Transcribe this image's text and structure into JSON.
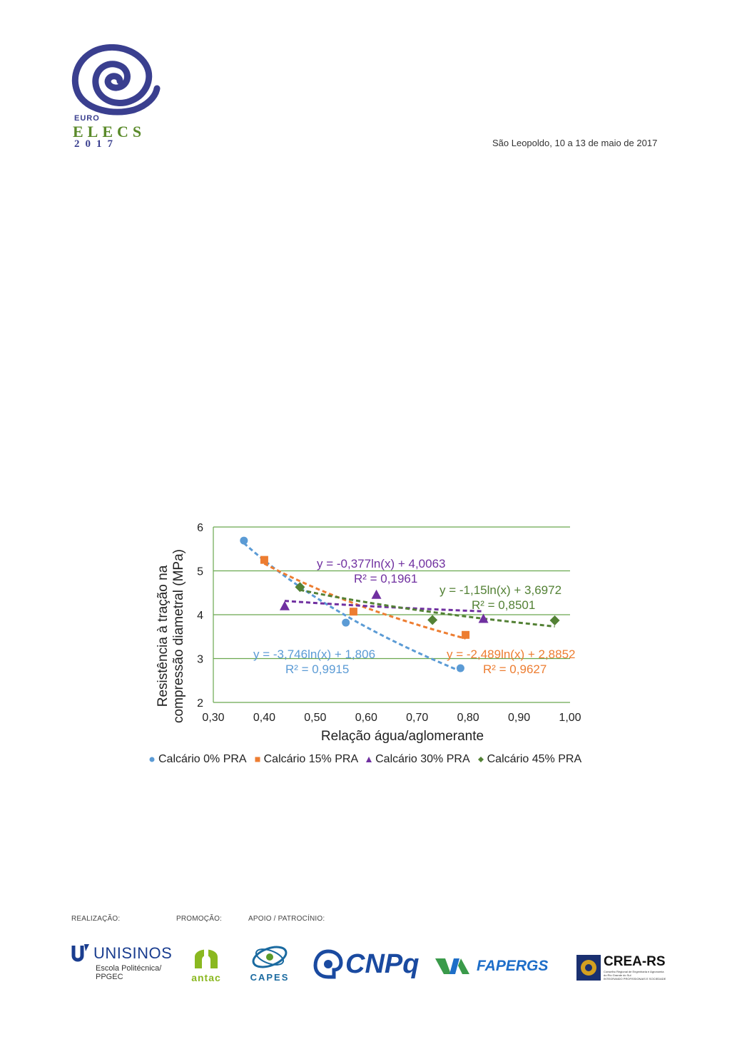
{
  "header": {
    "logo": {
      "line1": "EURO",
      "line2": "ELECS",
      "line3": "2017"
    },
    "date_place": "São Leopoldo, 10 a 13 de maio de 2017"
  },
  "colors": {
    "grid": "#6aa84f",
    "series0": "#5b9bd5",
    "series15": "#ed7d31",
    "series30": "#7030a0",
    "series45": "#538135"
  },
  "chart_data": {
    "type": "scatter",
    "xlabel": "Relação água/aglomerante",
    "ylabel_line1": "Resistência à tração na",
    "ylabel_line2": "compressão diametral (MPa)",
    "xlim": [
      0.3,
      1.0
    ],
    "ylim": [
      2,
      6
    ],
    "x_ticks": [
      "0,30",
      "0,40",
      "0,50",
      "0,60",
      "0,70",
      "0,80",
      "0,90",
      "1,00"
    ],
    "y_ticks": [
      "2",
      "3",
      "4",
      "5",
      "6"
    ],
    "grid": "horizontal",
    "legend_position": "bottom",
    "series": [
      {
        "name": "Calcário 0% PRA",
        "marker": "circle",
        "color": "#5b9bd5",
        "x": [
          0.36,
          0.56,
          0.785
        ],
        "y": [
          5.69,
          3.82,
          2.78
        ],
        "trendline": {
          "a": -3.746,
          "b": 1.806,
          "x_from": 0.36,
          "x_to": 0.785
        },
        "equation": "y = -3,746ln(x) + 1,806",
        "r2": "R² = 0,9915"
      },
      {
        "name": "Calcário 15% PRA",
        "marker": "square",
        "color": "#ed7d31",
        "x": [
          0.4,
          0.575,
          0.795
        ],
        "y": [
          5.25,
          4.07,
          3.54
        ],
        "trendline": {
          "a": -2.489,
          "b": 2.8852,
          "x_from": 0.4,
          "x_to": 0.795
        },
        "equation": "y = -2,489ln(x) + 2,8852",
        "r2": "R² = 0,9627"
      },
      {
        "name": "Calcário 30% PRA",
        "marker": "triangle",
        "color": "#7030a0",
        "x": [
          0.44,
          0.62,
          0.83
        ],
        "y": [
          4.2,
          4.46,
          3.91
        ],
        "trendline": {
          "a": -0.377,
          "b": 4.0063,
          "x_from": 0.44,
          "x_to": 0.83
        },
        "equation": "y = -0,377ln(x) + 4,0063",
        "r2": "R² = 0,1961"
      },
      {
        "name": "Calcário 45% PRA",
        "marker": "diamond",
        "color": "#538135",
        "x": [
          0.47,
          0.73,
          0.97
        ],
        "y": [
          4.63,
          3.88,
          3.87
        ],
        "trendline": {
          "a": -1.15,
          "b": 3.6972,
          "x_from": 0.47,
          "x_to": 0.97
        },
        "equation": "y = -1,15ln(x) + 3,6972",
        "r2": "R² = 0,8501"
      }
    ]
  },
  "footer": {
    "realizacao": "REALIZAÇÃO:",
    "promocao": "PROMOÇÃO:",
    "apoio": "APOIO / PATROCÍNIO:",
    "unisinos": {
      "name": "UNISINOS",
      "sub1": "Escola Politécnica/",
      "sub2": "PPGEC"
    },
    "antac": "antac",
    "capes": "CAPES",
    "cnpq": "CNPq",
    "fapergs": "FAPERGS",
    "crea": {
      "name": "CREA-RS",
      "sub1": "Conselho Regional de Engenharia e Agronomia",
      "sub2": "do Rio Grande do Sul",
      "sub3": "INTEGRANDO PROFISSIONAIS E SOCIEDADE"
    }
  }
}
